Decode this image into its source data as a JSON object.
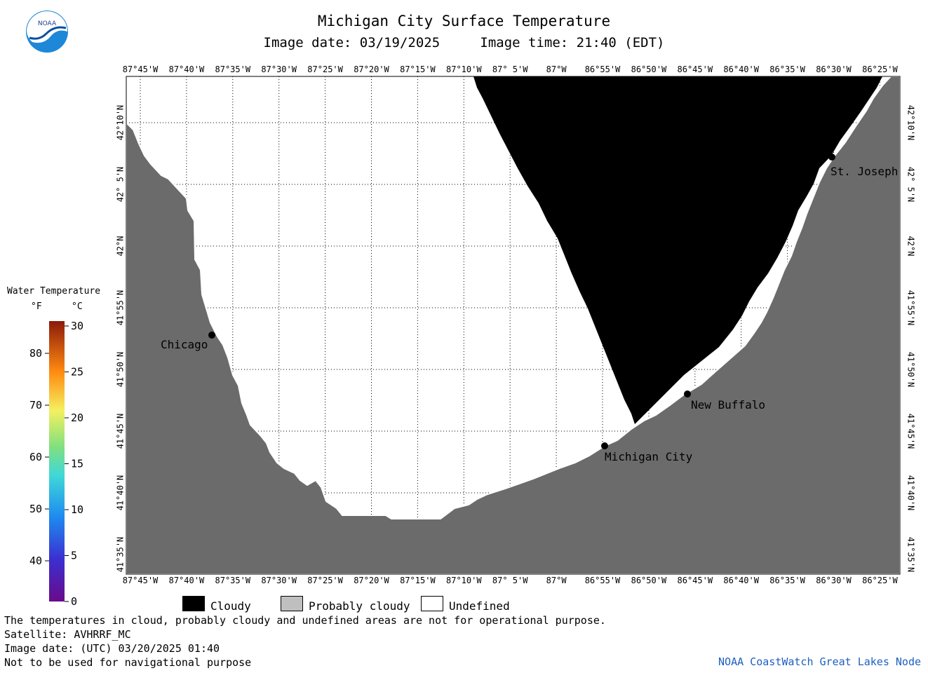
{
  "header": {
    "title": "Michigan City Surface Temperature",
    "image_date": "Image date: 03/19/2025",
    "image_time": "Image time: 21:40 (EDT)"
  },
  "logo": {
    "name": "noaa-logo",
    "text": "NOAA"
  },
  "map": {
    "lon_labels": [
      "87°45'W",
      "87°40'W",
      "87°35'W",
      "87°30'W",
      "87°25'W",
      "87°20'W",
      "87°15'W",
      "87°10'W",
      "87° 5'W",
      "87°W",
      "86°55'W",
      "86°50'W",
      "86°45'W",
      "86°40'W",
      "86°35'W",
      "86°30'W",
      "86°25'W"
    ],
    "lat_labels": [
      "42°10'N",
      "42° 5'N",
      "42°N",
      "41°55'N",
      "41°50'N",
      "41°45'N",
      "41°40'N",
      "41°35'N"
    ],
    "cities": [
      {
        "name": "Chicago"
      },
      {
        "name": "St. Joseph"
      },
      {
        "name": "New Buffalo"
      },
      {
        "name": "Michigan City"
      }
    ],
    "colors": {
      "land": "#6b6b6b",
      "cloud": "#000000",
      "water_undefined": "#ffffff"
    }
  },
  "legend": {
    "title": "Water Temperature",
    "unit_f": "°F",
    "unit_c": "°C",
    "f_ticks": [
      "80",
      "70",
      "60",
      "50",
      "40"
    ],
    "c_ticks": [
      "30",
      "25",
      "20",
      "15",
      "10",
      "5",
      "0"
    ],
    "categories": [
      {
        "label": "Cloudy",
        "color": "#000000"
      },
      {
        "label": "Probably cloudy",
        "color": "#bfbfbf"
      },
      {
        "label": "Undefined",
        "color": "#ffffff"
      }
    ]
  },
  "footer": {
    "line1": "The temperatures in cloud, probably cloudy and undefined areas are not for operational purpose.",
    "line2": "Satellite: AVHRRF_MC",
    "line3": "Image date: (UTC) 03/20/2025  01:40",
    "line4": "Not to be used for navigational purpose",
    "credit": "NOAA CoastWatch Great Lakes Node"
  }
}
